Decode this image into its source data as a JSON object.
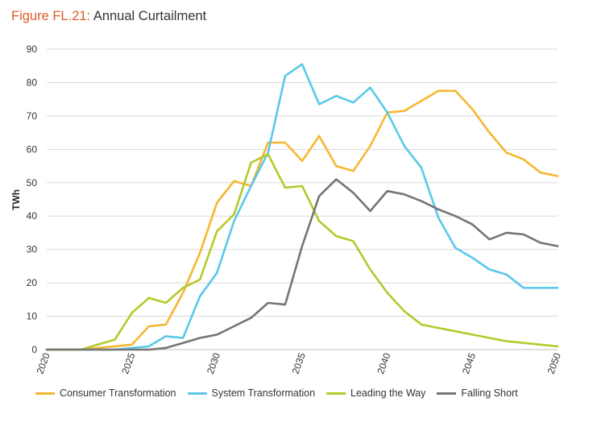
{
  "header": {
    "fig_label": "Figure FL.21:",
    "title": " Annual Curtailment"
  },
  "chart_data": {
    "type": "line",
    "title": "Annual Curtailment",
    "xlabel": "",
    "ylabel": "TWh",
    "xlim": [
      2020,
      2050
    ],
    "ylim": [
      0,
      90
    ],
    "yticks": [
      "0",
      "10",
      "20",
      "30",
      "40",
      "50",
      "60",
      "70",
      "80",
      "90"
    ],
    "xticks": [
      "2020",
      "2025",
      "2030",
      "2035",
      "2040",
      "2045",
      "2050"
    ],
    "grid": "horizontal",
    "legend_position": "bottom",
    "x": [
      2020,
      2021,
      2022,
      2023,
      2024,
      2025,
      2026,
      2027,
      2028,
      2029,
      2030,
      2031,
      2032,
      2033,
      2034,
      2035,
      2036,
      2037,
      2038,
      2039,
      2040,
      2041,
      2042,
      2043,
      2044,
      2045,
      2046,
      2047,
      2048,
      2049,
      2050
    ],
    "series": [
      {
        "name": "Consumer Transformation",
        "color": "#f5b731",
        "values": [
          0,
          0,
          0,
          0.5,
          1,
          1.5,
          7,
          7.5,
          17,
          29,
          44,
          50.5,
          49,
          62,
          62,
          56.5,
          64,
          55,
          53.5,
          61,
          71,
          71.5,
          74.5,
          77.5,
          77.5,
          72,
          65,
          59,
          57,
          53,
          52
        ]
      },
      {
        "name": "System Transformation",
        "color": "#5bc8ea",
        "values": [
          0,
          0,
          0,
          0,
          0,
          0.5,
          1,
          4,
          3.5,
          16,
          23,
          38.5,
          49,
          59,
          82,
          85.5,
          73.5,
          76,
          74,
          78.5,
          71,
          61,
          54.5,
          39.5,
          30.5,
          27.5,
          24,
          22.5,
          18.5,
          18.5,
          18.5
        ]
      },
      {
        "name": "Leading the Way",
        "color": "#b5c92a",
        "values": [
          0,
          0,
          0,
          1.5,
          3,
          11,
          15.5,
          14,
          18.5,
          21,
          35.5,
          40.5,
          56,
          58.5,
          48.5,
          49,
          38.5,
          34,
          32.5,
          24,
          17,
          11.5,
          7.5,
          6.5,
          5.5,
          4.5,
          3.5,
          2.5,
          2,
          1.5,
          1
        ]
      },
      {
        "name": "Falling Short",
        "color": "#757575",
        "values": [
          0,
          0,
          0,
          0,
          0,
          0,
          0,
          0.5,
          2,
          3.5,
          4.5,
          7,
          9.5,
          14,
          13.5,
          31,
          46,
          51,
          47,
          41.5,
          47.5,
          46.5,
          44.5,
          42,
          40,
          37.5,
          33,
          35,
          34.5,
          32,
          31
        ]
      }
    ]
  }
}
